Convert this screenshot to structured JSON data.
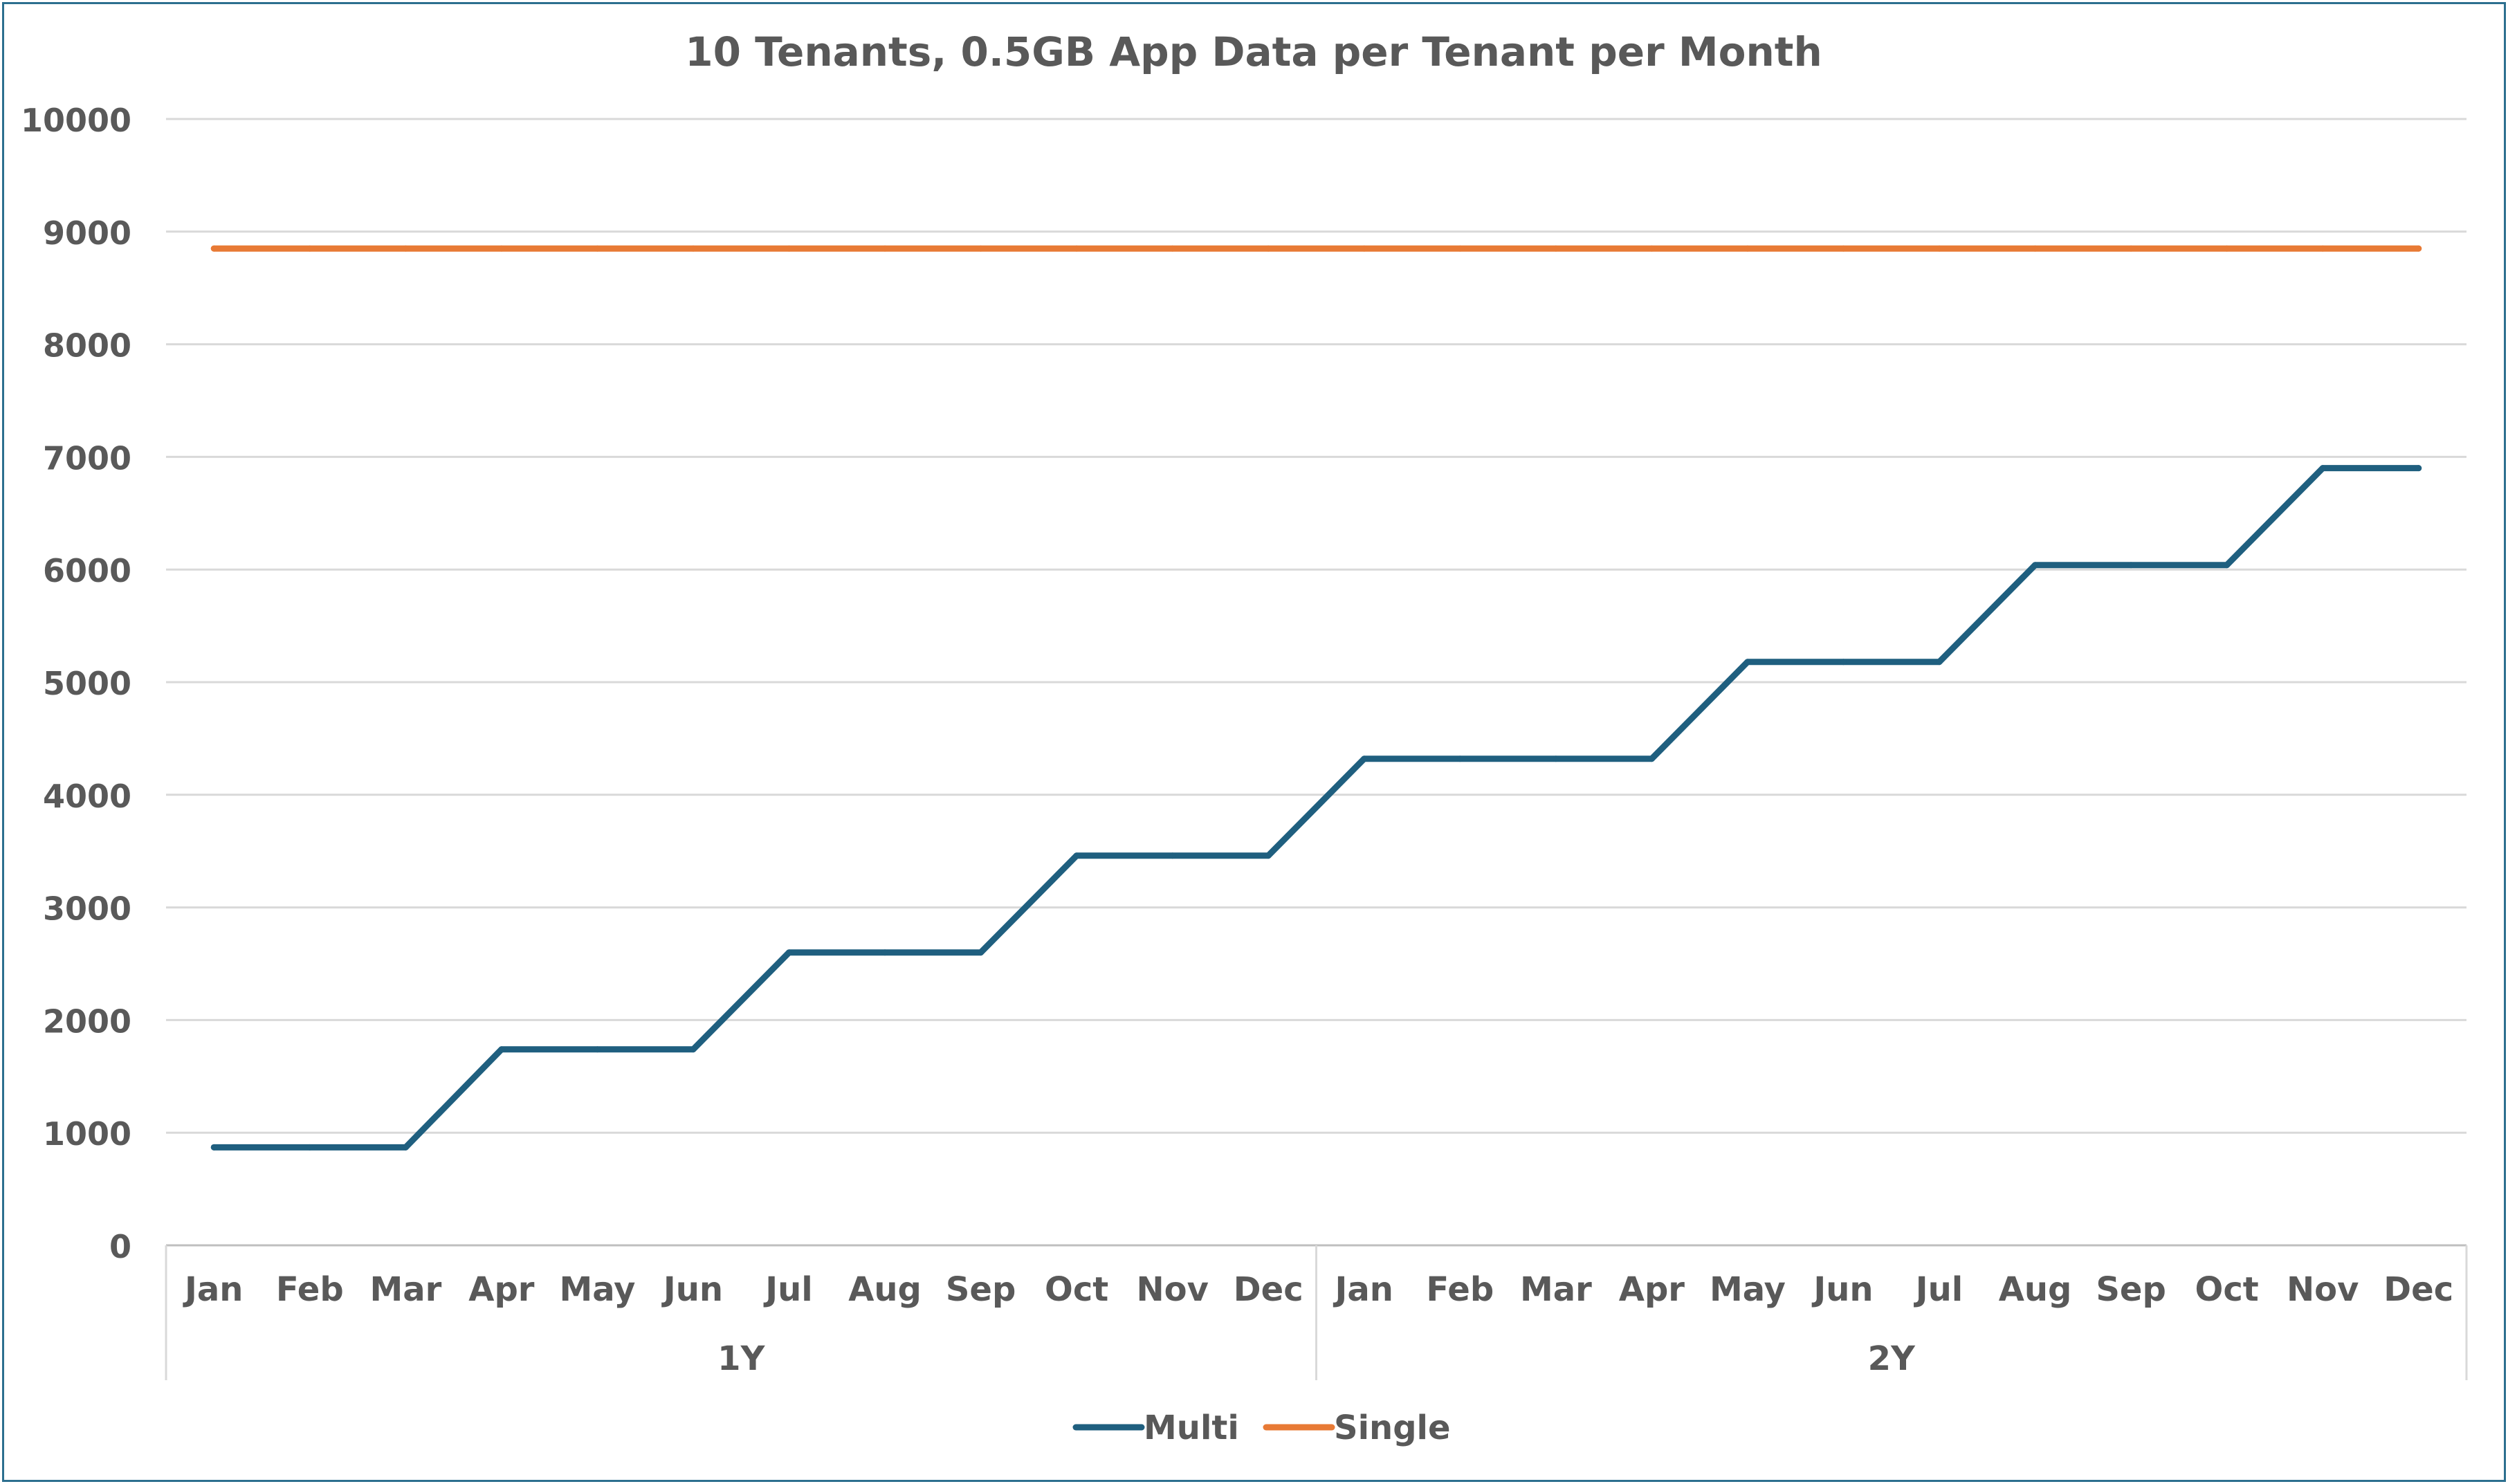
{
  "chart_data": {
    "type": "line",
    "title": "10 Tenants, 0.5GB App Data per Tenant per Month",
    "xlabel": "",
    "ylabel": "",
    "ylim": [
      0,
      10000
    ],
    "y_ticks": [
      "0",
      "1000",
      "2000",
      "3000",
      "4000",
      "5000",
      "6000",
      "7000",
      "8000",
      "9000",
      "10000"
    ],
    "grid": true,
    "legend_position": "bottom",
    "categories": [
      "Jan",
      "Feb",
      "Mar",
      "Apr",
      "May",
      "Jun",
      "Jul",
      "Aug",
      "Sep",
      "Oct",
      "Nov",
      "Dec",
      "Jan",
      "Feb",
      "Mar",
      "Apr",
      "May",
      "Jun",
      "Jul",
      "Aug",
      "Sep",
      "Oct",
      "Nov",
      "Dec"
    ],
    "category_groups": [
      {
        "label": "1Y",
        "count": 12
      },
      {
        "label": "2Y",
        "count": 12
      }
    ],
    "series": [
      {
        "name": "Multi",
        "color": "#1f5f7f",
        "values": [
          870,
          870,
          870,
          1740,
          1740,
          1740,
          2600,
          2600,
          2600,
          3460,
          3460,
          3460,
          4320,
          4320,
          4320,
          4320,
          5180,
          5180,
          5180,
          6040,
          6040,
          6040,
          6900,
          6900
        ]
      },
      {
        "name": "Single",
        "color": "#e87a35",
        "values": [
          8850,
          8850,
          8850,
          8850,
          8850,
          8850,
          8850,
          8850,
          8850,
          8850,
          8850,
          8850,
          8850,
          8850,
          8850,
          8850,
          8850,
          8850,
          8850,
          8850,
          8850,
          8850,
          8850,
          8850
        ]
      }
    ]
  }
}
